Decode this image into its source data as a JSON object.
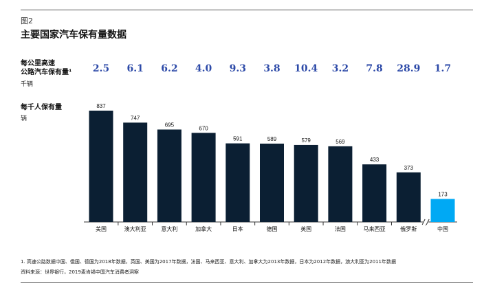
{
  "figure_number": "图2",
  "title": "主要国家汽车保有量数据",
  "highway_row": {
    "label_line1": "每公里高速",
    "label_line2": "公路汽车保有量¹",
    "unit": "千辆"
  },
  "per_thousand_row": {
    "label": "每千人保有量",
    "unit": "辆"
  },
  "colors": {
    "bar": "#0b1f33",
    "highlight": "#00a9f4",
    "highway_value": "#2d4aa8"
  },
  "chart_data": {
    "type": "bar",
    "categories": [
      "美国",
      "澳大利亚",
      "意大利",
      "加拿大",
      "日本",
      "德国",
      "英国",
      "法国",
      "马来西亚",
      "俄罗斯",
      "中国"
    ],
    "values": [
      837,
      747,
      695,
      670,
      591,
      589,
      579,
      569,
      433,
      373,
      173
    ],
    "highway_values": [
      "2.5",
      "6.1",
      "6.2",
      "4.0",
      "9.3",
      "3.8",
      "10.4",
      "3.2",
      "7.8",
      "28.9",
      "1.7"
    ],
    "highlight_category": "中国",
    "axis_break_before": "中国",
    "ylim": [
      0,
      837
    ],
    "grid": false
  },
  "footnotes": {
    "note1": "1. 高速公路数据中国、俄国、德国为2018年数据，英国、美国为2017年数据，法国、马来西亚、意大利、加拿大为2013年数据，日本为2012年数据，澳大利亚为2011年数据",
    "source": "资料来源：世界银行，2019麦肯锡中国汽车消费者洞察"
  }
}
